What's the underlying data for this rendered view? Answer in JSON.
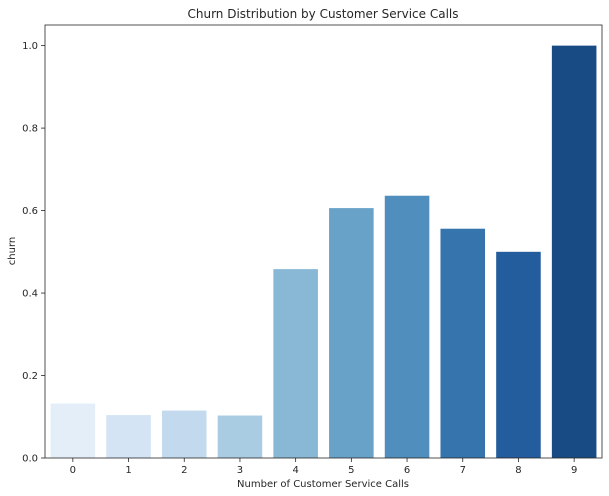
{
  "chart_data": {
    "type": "bar",
    "title": "Churn Distribution by Customer Service Calls",
    "xlabel": "Number of Customer Service Calls",
    "ylabel": "churn",
    "categories": [
      "0",
      "1",
      "2",
      "3",
      "4",
      "5",
      "6",
      "7",
      "8",
      "9"
    ],
    "values": [
      0.132,
      0.104,
      0.115,
      0.103,
      0.458,
      0.606,
      0.636,
      0.556,
      0.5,
      1.0
    ],
    "ylim": [
      0,
      1.05
    ],
    "yticks": [
      "0.0",
      "0.2",
      "0.4",
      "0.6",
      "0.8",
      "1.0"
    ],
    "grid": false,
    "palette": "Blues",
    "colors": [
      "#e3eef9",
      "#d4e4f4",
      "#c3daee",
      "#a9cce3",
      "#88b8d6",
      "#69a2c9",
      "#4f8ebd",
      "#3574ad",
      "#235d9e",
      "#184a83"
    ]
  }
}
